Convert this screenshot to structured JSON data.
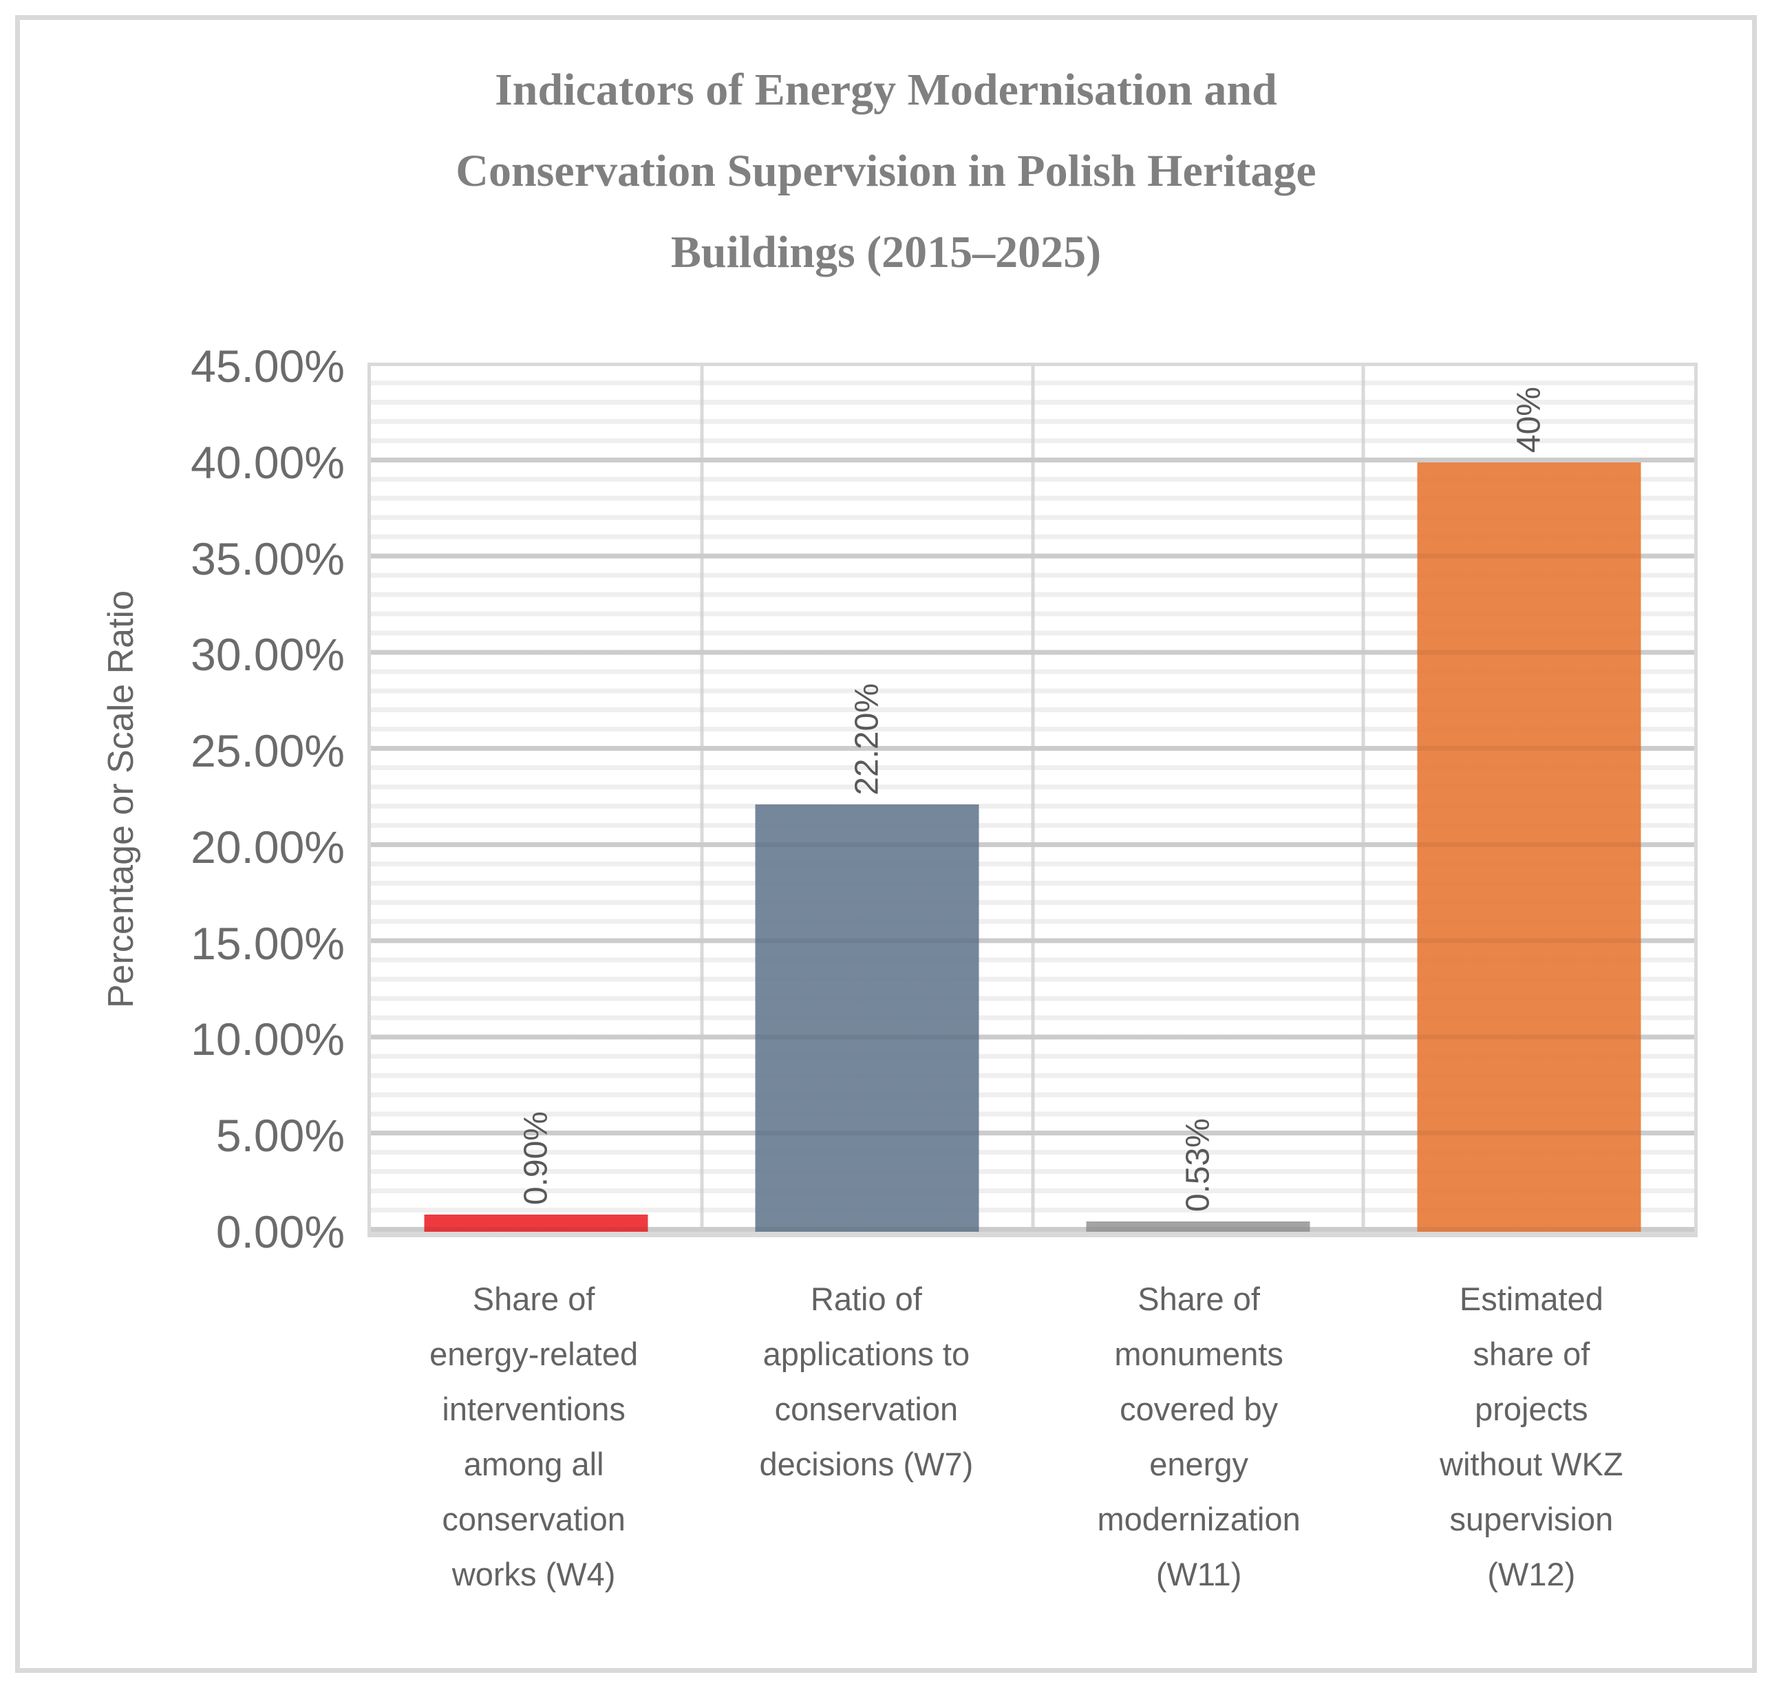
{
  "chart_data": {
    "type": "bar",
    "title": "Indicators of Energy Modernisation and\nConservation Supervision in Polish Heritage\nBuildings (2015–2025)",
    "xlabel": "",
    "ylabel": "Percentage or Scale Ratio",
    "ylim": [
      0,
      45
    ],
    "y_major_step": 5,
    "y_minor_step": 1,
    "y_ticks": [
      "0.00%",
      "5.00%",
      "10.00%",
      "15.00%",
      "20.00%",
      "25.00%",
      "30.00%",
      "35.00%",
      "40.00%",
      "45.00%"
    ],
    "grid": "horizontal major and minor gridlines, vertical category separators",
    "legend": "none",
    "categories": [
      "Share of\nenergy-related\ninterventions\namong all\nconservation\nworks (W4)",
      "Ratio of\napplications to\nconservation\ndecisions (W7)",
      "Share of\nmonuments\ncovered by\nenergy\nmodernization\n(W11)",
      "Estimated\nshare of\nprojects\nwithout WKZ\nsupervision\n(W12)"
    ],
    "values": [
      0.9,
      22.2,
      0.53,
      40
    ],
    "data_labels": [
      "0.90%",
      "22.20%",
      "0.53%",
      "40%"
    ],
    "bar_colors": [
      "#EE3A3E",
      "#75879B",
      "#A3A3A3",
      "#EA8549"
    ]
  },
  "colors": {
    "title_text": "#808080",
    "axis_text": "#666666",
    "data_label_text": "#595959",
    "major_gridline": "#D9D9D9",
    "minor_gridline": "#F2F2F2",
    "chart_border": "#D9D9D9",
    "background": "#FFFFFF"
  }
}
